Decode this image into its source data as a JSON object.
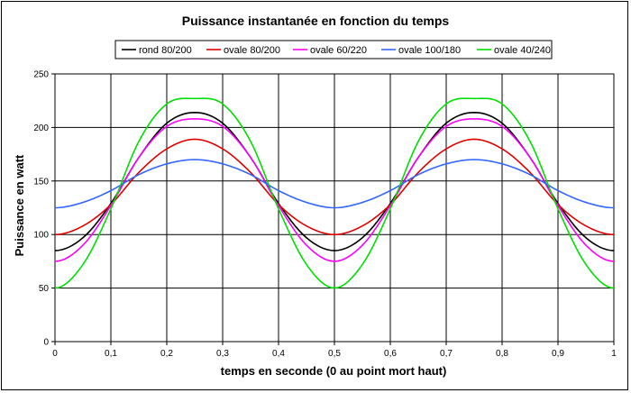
{
  "chart_data": {
    "type": "line",
    "title": "Puissance instantanée en fonction du temps",
    "xlabel": "temps en seconde (0 au point mort haut)",
    "ylabel": "Puissance en watt",
    "xlim": [
      0,
      1
    ],
    "ylim": [
      0,
      250
    ],
    "x_ticks": [
      "0",
      "0,1",
      "0,2",
      "0,3",
      "0,4",
      "0,5",
      "0,6",
      "0,7",
      "0,8",
      "0,9",
      "1"
    ],
    "y_ticks": [
      "0",
      "50",
      "100",
      "150",
      "200",
      "250"
    ],
    "grid": true,
    "legend_position": "top",
    "period": 0.5,
    "x": [
      0,
      0.05,
      0.1,
      0.15,
      0.2,
      0.25,
      0.3,
      0.35,
      0.4,
      0.45,
      0.5,
      0.55,
      0.6,
      0.65,
      0.7,
      0.75,
      0.8,
      0.85,
      0.9,
      0.95,
      1
    ],
    "series": [
      {
        "name": "rond 80/200",
        "color": "#000000",
        "values": [
          85,
          97,
          129,
          172,
          204,
          214,
          204,
          172,
          129,
          97,
          85,
          97,
          129,
          172,
          204,
          214,
          204,
          172,
          129,
          97,
          85
        ]
      },
      {
        "name": "ovale 80/200",
        "color": "#e00000",
        "values": [
          100,
          108,
          128,
          158,
          180,
          189,
          180,
          158,
          128,
          108,
          100,
          108,
          128,
          158,
          180,
          189,
          180,
          158,
          128,
          108,
          100
        ]
      },
      {
        "name": "ovale 60/220",
        "color": "#ff00ff",
        "values": [
          75,
          90,
          127,
          172,
          201,
          208,
          201,
          172,
          127,
          90,
          75,
          90,
          127,
          172,
          201,
          208,
          201,
          172,
          127,
          90,
          75
        ]
      },
      {
        "name": "ovale 100/180",
        "color": "#3366ff",
        "values": [
          125,
          130,
          141,
          156,
          166,
          170,
          166,
          156,
          141,
          130,
          125,
          130,
          141,
          156,
          166,
          170,
          166,
          156,
          141,
          130,
          125
        ]
      },
      {
        "name": "ovale 40/240",
        "color": "#00e000",
        "values": [
          50,
          72,
          124,
          187,
          222,
          227,
          222,
          187,
          124,
          72,
          50,
          72,
          124,
          187,
          222,
          227,
          222,
          187,
          124,
          72,
          50
        ]
      }
    ]
  }
}
